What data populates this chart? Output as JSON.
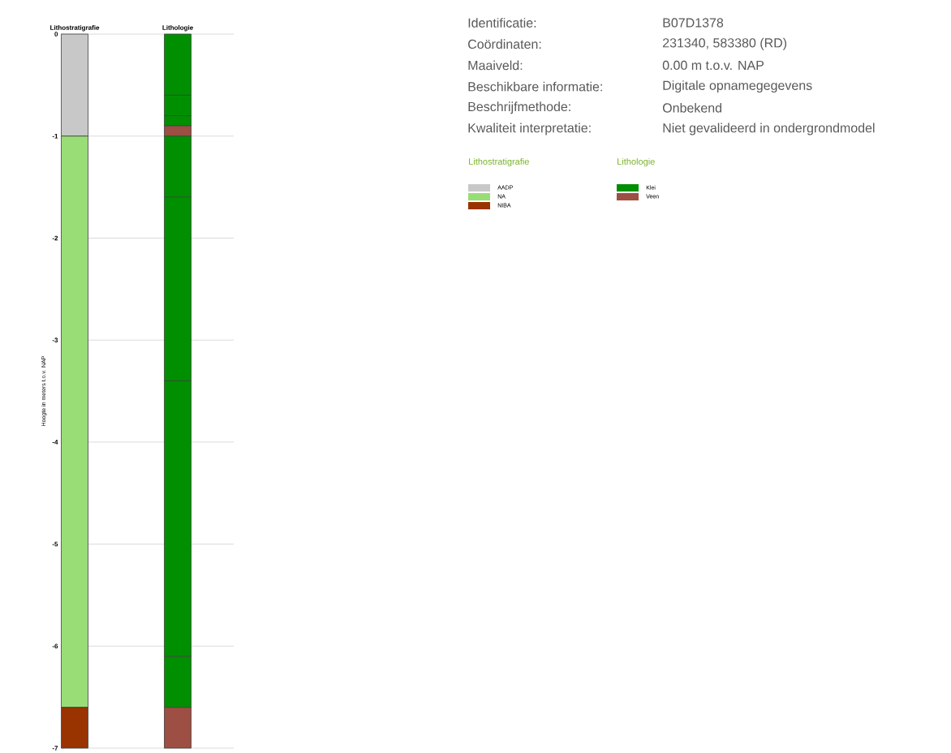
{
  "chart_data": {
    "type": "bar",
    "stacked": true,
    "categories": [
      "Lithostratigrafie",
      "Lithologie"
    ],
    "ylabel": "Hoogte in meters t.o.v. NAP",
    "ylim": [
      -7,
      0
    ],
    "yticks": [
      0,
      -1,
      -2,
      -3,
      -4,
      -5,
      -6,
      -7
    ],
    "grid": "y",
    "legend": "right",
    "series": [
      {
        "name": "AADP",
        "color": "#c8c8c8",
        "values": [
          -1.0,
          null
        ]
      },
      {
        "name": "NA",
        "color": "#99dd77",
        "values": [
          -5.6,
          null
        ]
      },
      {
        "name": "NIBA",
        "color": "#993300",
        "values": [
          -0.4,
          null
        ]
      },
      {
        "name": "Klei",
        "color": "#008f00",
        "values": [
          null,
          -0.6
        ]
      },
      {
        "color": "#008f00",
        "values": [
          null,
          -0.2
        ]
      },
      {
        "color": "#008f00",
        "values": [
          null,
          -0.1
        ]
      },
      {
        "name": "Veen",
        "color": "#9c4f42",
        "values": [
          null,
          -0.1
        ]
      },
      {
        "color": "#008f00",
        "values": [
          null,
          -0.6
        ]
      },
      {
        "color": "#008f00",
        "values": [
          null,
          -1.8
        ]
      },
      {
        "color": "#008f00",
        "values": [
          null,
          -2.7
        ]
      },
      {
        "color": "#008f00",
        "values": [
          null,
          -0.5
        ]
      },
      {
        "color": "#9c4f42",
        "values": [
          null,
          -0.4
        ]
      }
    ],
    "annotations": [
      "Identificatie:",
      "B07D1378",
      "Coördinaten:",
      "231340, 583380 (RD)",
      "Maaiveld:",
      "0.00 m t.o.v. NAP",
      "Beschikbare informatie:",
      "Digitale opnamegegevens",
      "Beschrijfmethode:",
      "Onbekend",
      "Kwaliteit interpretatie:",
      "Niet gevalideerd in ondergrondmodel"
    ]
  }
}
